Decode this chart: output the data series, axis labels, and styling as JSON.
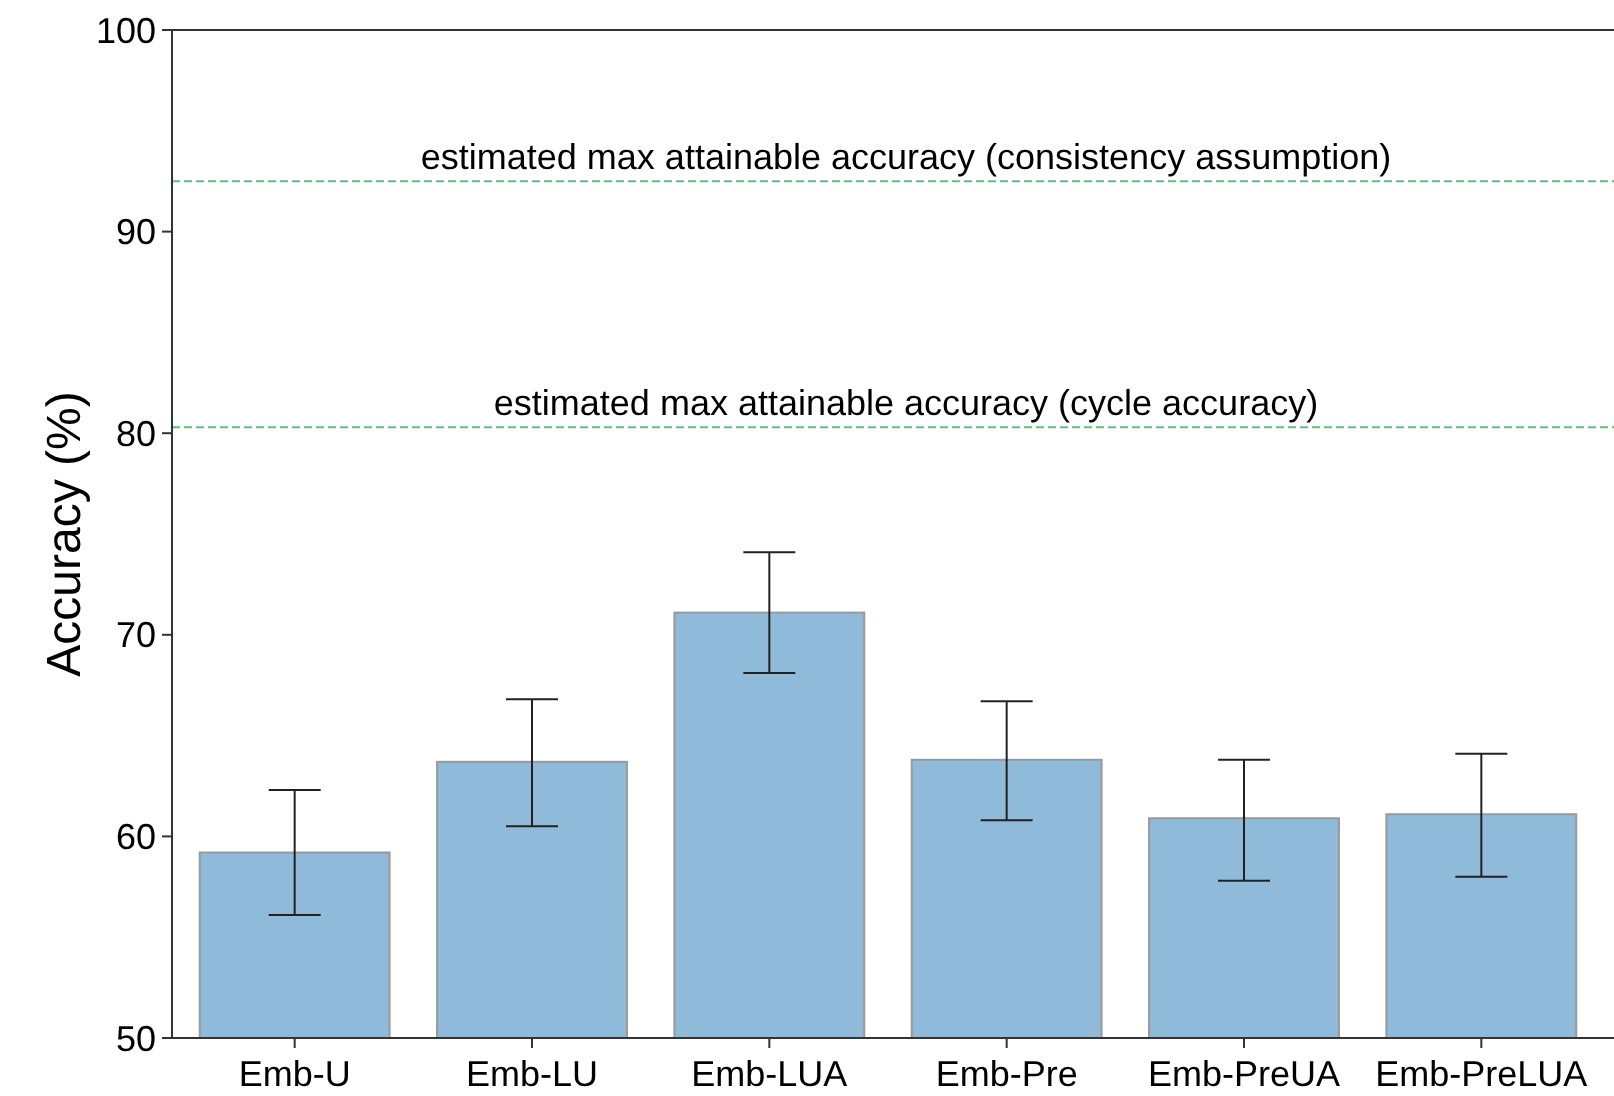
{
  "chart_data": {
    "type": "bar",
    "ylabel": "Accuracy (%)",
    "categories": [
      "Emb-U",
      "Emb-LU",
      "Emb-LUA",
      "Emb-Pre",
      "Emb-PreUA",
      "Emb-PreLUA"
    ],
    "values": [
      59.2,
      63.7,
      71.1,
      63.8,
      60.9,
      61.1
    ],
    "errors": [
      [
        56.1,
        62.3
      ],
      [
        60.5,
        66.8
      ],
      [
        68.1,
        74.1
      ],
      [
        60.8,
        66.7
      ],
      [
        57.8,
        63.8
      ],
      [
        58.0,
        64.1
      ]
    ],
    "color": "#8fbad9",
    "ylim": [
      50,
      100
    ],
    "yticks": [
      50,
      60,
      70,
      80,
      90,
      100
    ],
    "grid": false,
    "ref_lines": [
      {
        "axis": "y",
        "value": 92.5,
        "label": "estimated max attainable accuracy (consistency assumption)",
        "color": "#5fbf7f",
        "line_style": "dashed"
      },
      {
        "axis": "y",
        "value": 80.3,
        "label": "estimated max attainable accuracy (cycle accuracy)",
        "color": "#5fbf7f",
        "line_style": "dashed"
      }
    ]
  }
}
